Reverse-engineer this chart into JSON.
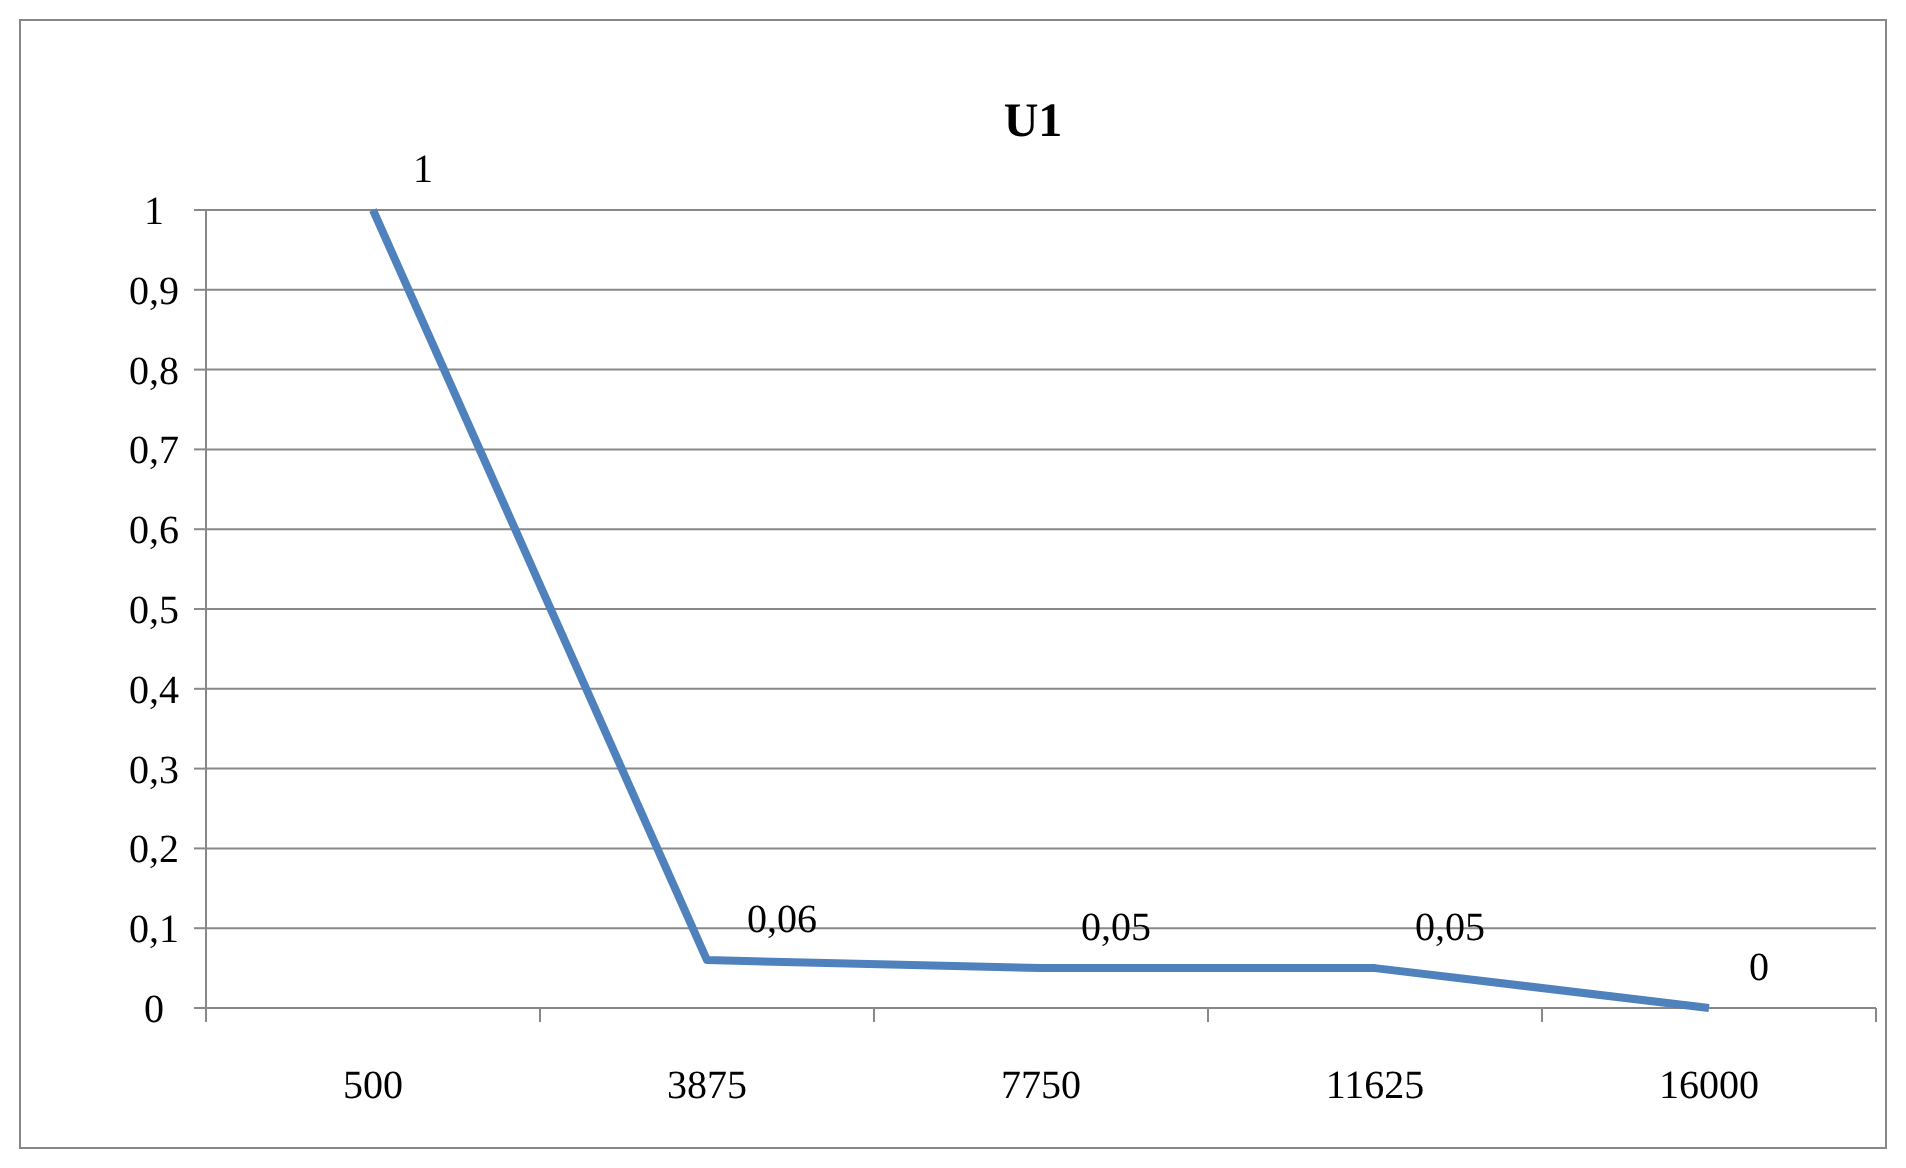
{
  "chart_data": {
    "type": "line",
    "title": "U1",
    "categories": [
      "500",
      "3875",
      "7750",
      "11625",
      "16000"
    ],
    "series": [
      {
        "color": "#4f81bd",
        "values": [
          1,
          0.06,
          0.05,
          0.05,
          0
        ],
        "value_labels": [
          "1",
          "0,06",
          "0,05",
          "0,05",
          "0"
        ]
      }
    ],
    "ylim": [
      0,
      1
    ],
    "yticks": [
      0,
      {
        "value": 0.1,
        "label": "0,1"
      },
      {
        "value": 0.2,
        "label": "0,2"
      },
      {
        "value": 0.3,
        "label": "0,3"
      },
      {
        "value": 0.4,
        "label": "0,4"
      },
      {
        "value": 0.5,
        "label": "0,5"
      },
      {
        "value": 0.6,
        "label": "0,6"
      },
      {
        "value": 0.7,
        "label": "0,7"
      },
      {
        "value": 0.8,
        "label": "0,8"
      },
      {
        "value": 0.9,
        "label": "0,9"
      },
      1
    ],
    "grid": "y",
    "marker": "none",
    "line_style": "solid"
  }
}
